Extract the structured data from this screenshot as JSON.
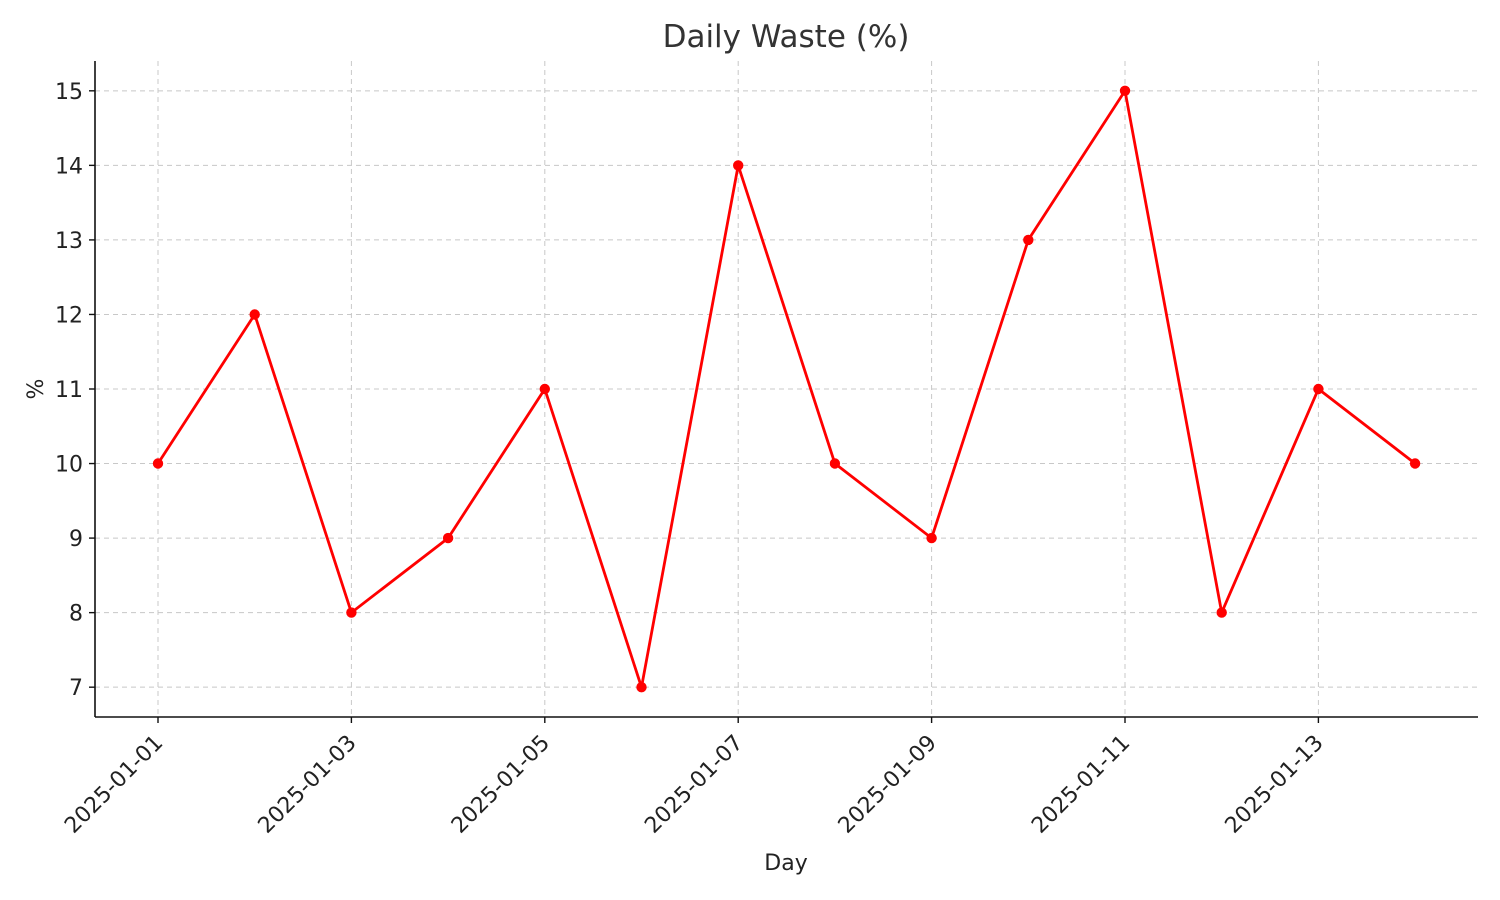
{
  "chart_data": {
    "type": "line",
    "title": "Daily Waste (%)",
    "xlabel": "Day",
    "ylabel": "%",
    "x": [
      "2025-01-01",
      "2025-01-02",
      "2025-01-03",
      "2025-01-04",
      "2025-01-05",
      "2025-01-06",
      "2025-01-07",
      "2025-01-08",
      "2025-01-09",
      "2025-01-10",
      "2025-01-11",
      "2025-01-12",
      "2025-01-13",
      "2025-01-14"
    ],
    "series": [
      {
        "values": [
          10,
          12,
          8,
          9,
          11,
          7,
          14,
          10,
          9,
          13,
          15,
          8,
          11,
          10
        ],
        "color": "#ff0000"
      }
    ],
    "x_ticks": [
      "2025-01-01",
      "2025-01-03",
      "2025-01-05",
      "2025-01-07",
      "2025-01-09",
      "2025-01-11",
      "2025-01-13"
    ],
    "y_ticks": [
      7,
      8,
      9,
      10,
      11,
      12,
      13,
      14,
      15
    ],
    "ylim": [
      6.6,
      15.4
    ],
    "grid": true,
    "legend": "none"
  }
}
